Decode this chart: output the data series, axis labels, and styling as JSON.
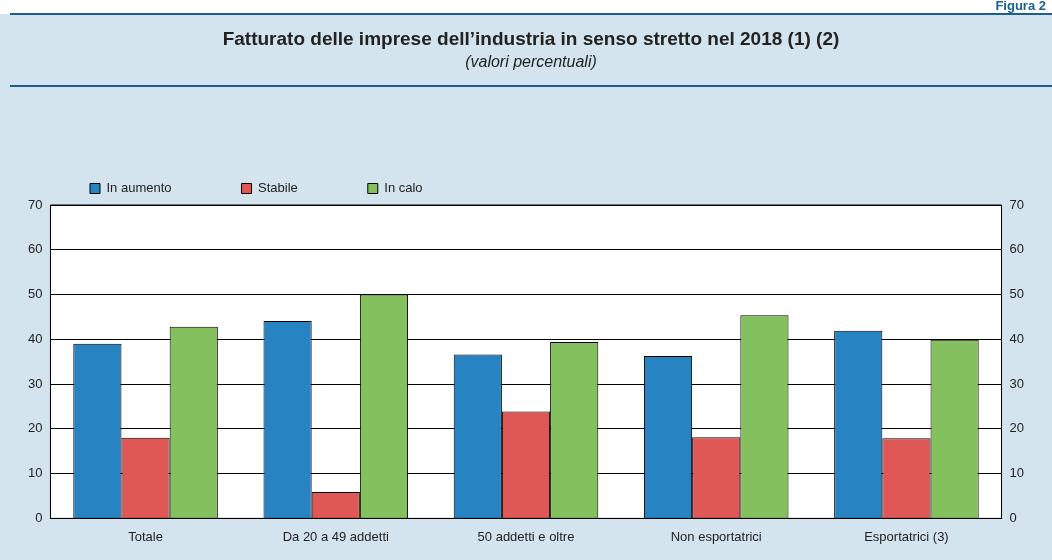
{
  "chart_data": {
    "type": "bar",
    "title": "Fatturato delle imprese dell’industria in senso stretto nel 2018 (1) (2)",
    "subtitle": "(valori percentuali)",
    "annotations": [
      "Figura 2"
    ],
    "categories": [
      "Totale",
      "Da 20 a 49 addetti",
      "50 addetti e oltre",
      "Non esportatrici",
      "Esportatrici (3)"
    ],
    "series": [
      {
        "name": "In aumento",
        "color": "#2783c1",
        "values": [
          39,
          44.1,
          36.6,
          36.3,
          41.9
        ]
      },
      {
        "name": "Stabile",
        "color": "#e05856",
        "values": [
          18,
          5.9,
          23.9,
          18.1,
          17.9
        ]
      },
      {
        "name": "In calo",
        "color": "#84c05e",
        "values": [
          42.8,
          50,
          39.4,
          45.4,
          39.9
        ]
      }
    ],
    "ylim": [
      0,
      70
    ],
    "yticks": [
      0,
      10,
      20,
      30,
      40,
      50,
      60,
      70
    ],
    "y2lim": [
      0,
      70
    ],
    "y2ticks": [
      0,
      10,
      20,
      30,
      40,
      50,
      60,
      70
    ],
    "grid": "y",
    "legend": "top left"
  }
}
